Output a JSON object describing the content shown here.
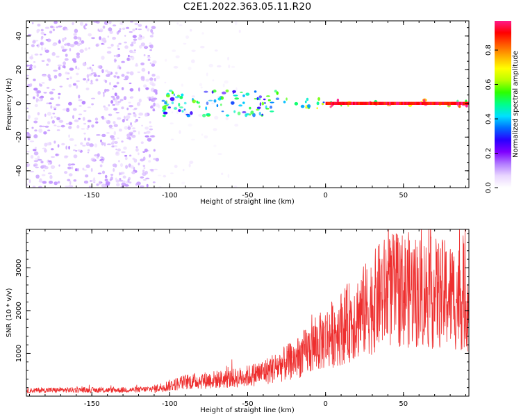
{
  "figure": {
    "title": "C2E1.2022.363.05.11.R20"
  },
  "chart_data": [
    {
      "type": "heatmap",
      "xlabel": "Height of straight line (km)",
      "ylabel": "Frequency (Hz)",
      "xlim": [
        -192,
        92
      ],
      "ylim": [
        -50,
        49
      ],
      "xticks": [
        -150,
        -100,
        -50,
        0,
        50
      ],
      "yticks": [
        -40,
        -20,
        0,
        20,
        40
      ],
      "grid": false,
      "colorbar": {
        "label": "Normalized spectral amplitude",
        "range": [
          0,
          0.97
        ],
        "ticks": [
          0.0,
          0.2,
          0.4,
          0.6,
          0.8
        ],
        "tick_labels": [
          "0.0",
          "0.2",
          "0.4",
          "0.6",
          "0.8"
        ],
        "colormap": [
          "#ffffff",
          "#e9d6ff",
          "#b27bff",
          "#7f00ff",
          "#2a00ff",
          "#006bff",
          "#00e0ff",
          "#00ff8a",
          "#2cff00",
          "#b8ff00",
          "#ffff00",
          "#ffb000",
          "#ff5a00",
          "#ff0000",
          "#ff1a8a"
        ]
      },
      "regions": [
        {
          "x_range": [
            -192,
            -108
          ],
          "freq_range": [
            -50,
            49
          ],
          "amplitude": 0.1
        },
        {
          "x_range": [
            -108,
            -55
          ],
          "freq_range": [
            -50,
            49
          ],
          "amplitude": 0.03
        },
        {
          "x_range": [
            -105,
            -30
          ],
          "freq_range": [
            -8,
            8
          ],
          "amplitude": 0.45
        },
        {
          "x_range": [
            -30,
            0
          ],
          "freq_range": [
            -3,
            3
          ],
          "amplitude": 0.55
        },
        {
          "x_range": [
            0,
            92
          ],
          "freq_range": [
            -2,
            2
          ],
          "amplitude": 0.9
        }
      ]
    },
    {
      "type": "line",
      "xlabel": "Height of straight line (km)",
      "ylabel": "SNR (10 * v/v)",
      "xlim": [
        -192,
        92
      ],
      "ylim": [
        0,
        3900
      ],
      "xticks": [
        -150,
        -100,
        -50,
        0,
        50
      ],
      "yticks": [
        1000,
        2000,
        3000
      ],
      "grid": false,
      "series": [
        {
          "color": "#ee2f2f",
          "x": [
            -192,
            -180,
            -160,
            -140,
            -120,
            -110,
            -100,
            -90,
            -80,
            -70,
            -60,
            -50,
            -40,
            -30,
            -20,
            -10,
            0,
            10,
            20,
            30,
            35,
            40,
            50,
            60,
            70,
            80,
            92
          ],
          "y": [
            130,
            140,
            145,
            140,
            150,
            170,
            250,
            330,
            360,
            390,
            410,
            470,
            560,
            700,
            850,
            1100,
            1350,
            1600,
            1850,
            2150,
            2350,
            2450,
            2500,
            2450,
            2400,
            2350,
            2300
          ]
        }
      ]
    }
  ]
}
